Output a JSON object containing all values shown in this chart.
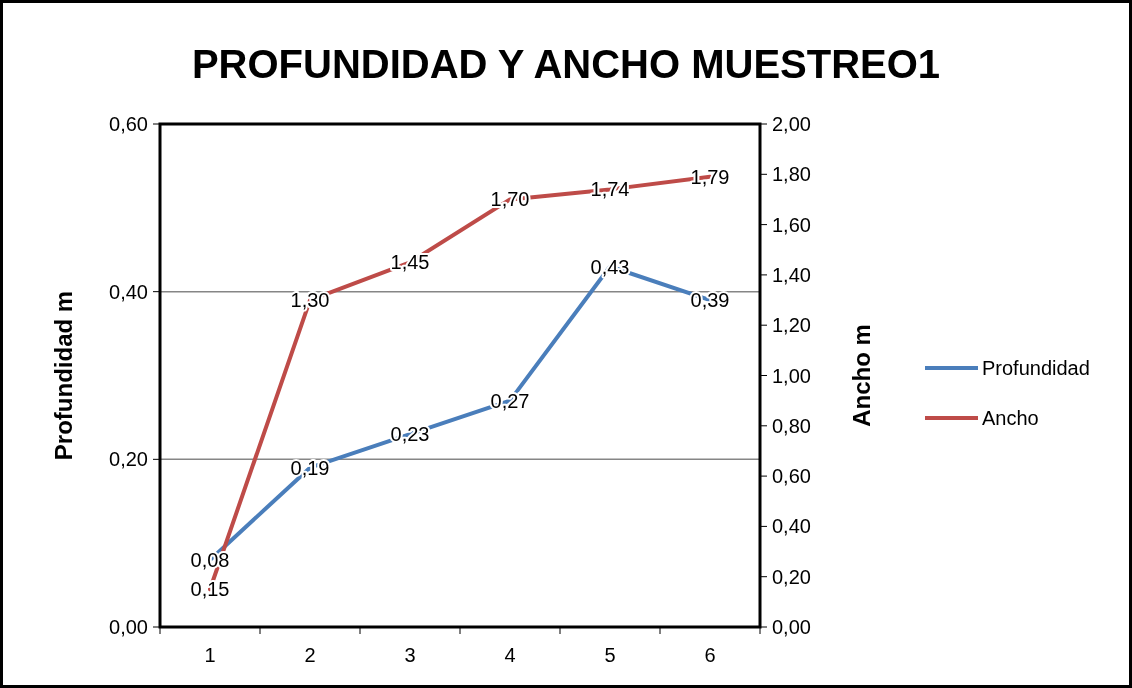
{
  "chart_data": {
    "type": "line",
    "title": "PROFUNDIDAD Y ANCHO MUESTREO1",
    "ylabel": "Profundidad m",
    "y2label": "Ancho m",
    "categories": [
      "1",
      "2",
      "3",
      "4",
      "5",
      "6"
    ],
    "series": [
      {
        "name": "Profundidad",
        "color": "#4a7ebb",
        "values": [
          0.08,
          0.19,
          0.23,
          0.27,
          0.43,
          0.39
        ],
        "value_labels": [
          "0,08",
          "0,19",
          "0,23",
          "0,27",
          "0,43",
          "0,39"
        ]
      },
      {
        "name": "Ancho",
        "color": "#be4b48",
        "axis": "y2",
        "values": [
          0.15,
          1.3,
          1.45,
          1.7,
          1.74,
          1.79
        ],
        "value_labels": [
          "0,15",
          "1,30",
          "1,45",
          "1,70",
          "1,74",
          "1,79"
        ]
      }
    ],
    "ylim": [
      0,
      0.6
    ],
    "yticks": [
      {
        "value": 0,
        "label": "0,00"
      },
      {
        "value": 0.2,
        "label": "0,20"
      },
      {
        "value": 0.4,
        "label": "0,40"
      },
      {
        "value": 0.6,
        "label": "0,60"
      }
    ],
    "y2lim": [
      0,
      2
    ],
    "y2ticks": [
      {
        "value": 0,
        "label": "0,00"
      },
      {
        "value": 0.2,
        "label": "0,20"
      },
      {
        "value": 0.4,
        "label": "0,40"
      },
      {
        "value": 0.6,
        "label": "0,60"
      },
      {
        "value": 0.8,
        "label": "0,80"
      },
      {
        "value": 1,
        "label": "1,00"
      },
      {
        "value": 1.2,
        "label": "1,20"
      },
      {
        "value": 1.4,
        "label": "1,40"
      },
      {
        "value": 1.6,
        "label": "1,60"
      },
      {
        "value": 1.8,
        "label": "1,80"
      },
      {
        "value": 2,
        "label": "2,00"
      }
    ],
    "grid": "y",
    "legend": "right",
    "marker": "none",
    "line_style": "solid"
  }
}
